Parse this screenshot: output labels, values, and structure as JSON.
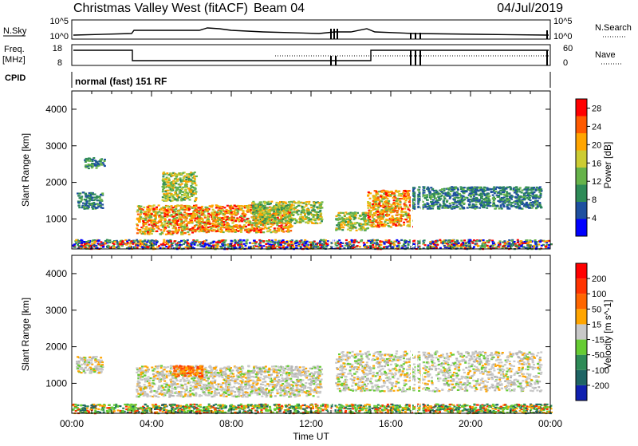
{
  "header": {
    "title": "Christmas Valley West (fitACF)",
    "beam": "Beam 04",
    "date": "04/Jul/2019"
  },
  "panels": {
    "nsky_label": "N.Sky",
    "nsky_ticks": [
      "10^5",
      "10^0"
    ],
    "nsearch_label": "N.Search",
    "nsearch_ticks": [
      "10^5",
      "10^0"
    ],
    "freq_label_1": "Freq.",
    "freq_label_2": "[MHz]",
    "freq_ticks": [
      "18",
      "8"
    ],
    "nave_label": "Nave",
    "nave_ticks": [
      "60",
      "0"
    ],
    "cpid_label": "CPID",
    "cpid_text": "normal (fast) 151 RF"
  },
  "chart_data": [
    {
      "type": "heatmap",
      "title": "",
      "xlabel": "Time UT",
      "ylabel": "Slant Range [km]",
      "xticks": [
        "00:00",
        "04:00",
        "08:00",
        "12:00",
        "16:00",
        "20:00",
        "00:00"
      ],
      "yticks": [
        "1000",
        "2000",
        "3000",
        "4000"
      ],
      "ylim": [
        180,
        4500
      ],
      "colorbar": {
        "label": "Power [dB]",
        "ticks": [
          "4",
          "8",
          "12",
          "16",
          "20",
          "24",
          "28"
        ],
        "range": [
          0,
          30
        ],
        "colors": [
          "#0000ff",
          "#1e50a0",
          "#2e8b57",
          "#66b34a",
          "#cccc33",
          "#ffa500",
          "#ff5a00",
          "#ff0000"
        ]
      },
      "regions": [
        {
          "t": [
            0.2,
            1.5
          ],
          "r": [
            1300,
            1750
          ],
          "level": "weak"
        },
        {
          "t": [
            0.6,
            1.6
          ],
          "r": [
            2400,
            2700
          ],
          "level": "weak"
        },
        {
          "t": [
            3.2,
            6.0
          ],
          "r": [
            600,
            1400
          ],
          "level": "strong"
        },
        {
          "t": [
            4.5,
            6.2
          ],
          "r": [
            1500,
            2300
          ],
          "level": "medium"
        },
        {
          "t": [
            6.0,
            11.0
          ],
          "r": [
            650,
            1400
          ],
          "level": "strong"
        },
        {
          "t": [
            9.0,
            12.5
          ],
          "r": [
            900,
            1500
          ],
          "level": "medium"
        },
        {
          "t": [
            13.2,
            14.8
          ],
          "r": [
            700,
            1200
          ],
          "level": "medium"
        },
        {
          "t": [
            14.8,
            17.0
          ],
          "r": [
            800,
            1800
          ],
          "level": "strong"
        },
        {
          "t": [
            17.0,
            23.5
          ],
          "r": [
            1300,
            1900
          ],
          "level": "weak"
        },
        {
          "t": [
            0.0,
            24.0
          ],
          "r": [
            200,
            450
          ],
          "level": "noise"
        }
      ]
    },
    {
      "type": "heatmap",
      "title": "",
      "xlabel": "Time UT",
      "ylabel": "Slant Range [km]",
      "xticks": [
        "00:00",
        "04:00",
        "08:00",
        "12:00",
        "16:00",
        "20:00",
        "00:00"
      ],
      "yticks": [
        "1000",
        "2000",
        "3000",
        "4000"
      ],
      "ylim": [
        180,
        4500
      ],
      "colorbar": {
        "label": "Velocity [m s^-1]",
        "ticks": [
          "200",
          "100",
          "50",
          "15",
          "-15",
          "-50",
          "-100",
          "-200"
        ],
        "range": [
          -250,
          250
        ],
        "colors": [
          "#1020b0",
          "#1e6464",
          "#2e8b57",
          "#66cc33",
          "#c8c8c8",
          "#ffa500",
          "#ff6600",
          "#ff3300",
          "#ff0000"
        ]
      },
      "regions": [
        {
          "t": [
            0.2,
            1.5
          ],
          "r": [
            1300,
            1750
          ],
          "level": "gray"
        },
        {
          "t": [
            3.2,
            12.5
          ],
          "r": [
            650,
            1500
          ],
          "level": "gray"
        },
        {
          "t": [
            5.0,
            6.5
          ],
          "r": [
            1200,
            1500
          ],
          "level": "orange"
        },
        {
          "t": [
            13.2,
            23.5
          ],
          "r": [
            800,
            1900
          ],
          "level": "gray"
        },
        {
          "t": [
            0.0,
            24.0
          ],
          "r": [
            200,
            450
          ],
          "level": "green"
        }
      ]
    }
  ]
}
